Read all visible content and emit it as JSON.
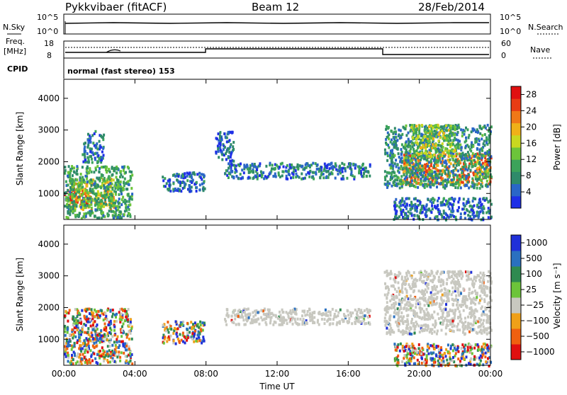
{
  "header": {
    "radar": "Pykkvibaer (fitACF)",
    "beam": "Beam 12",
    "date": "28/Feb/2014"
  },
  "strip": {
    "nsky_label": "N.Sky",
    "nsearch_label": "N.Search",
    "ns_ticks": [
      "10^5",
      "10^0"
    ],
    "freq_label": "Freq.",
    "freq_unit": "[MHz]",
    "freq_ticks": [
      "18",
      "8"
    ],
    "nave_label": "Nave",
    "nave_ticks": [
      "60",
      "0"
    ],
    "cpid_label": "CPID",
    "cpid_text": "normal (fast stereo) 153"
  },
  "chart_data": [
    {
      "type": "heatmap",
      "name": "power",
      "ylabel": "Slant Range [km]",
      "xlabel": "",
      "yticks": [
        1000,
        2000,
        3000,
        4000
      ],
      "ylim": [
        180,
        4600
      ],
      "xlim": [
        0,
        24
      ],
      "colorbar": {
        "label": "Power [dB]",
        "ticks": [
          4,
          8,
          12,
          16,
          20,
          24,
          28
        ],
        "range": [
          0,
          30
        ],
        "colors": [
          "#1e2fe6",
          "#2a66c8",
          "#2f8a6a",
          "#3ca35a",
          "#6cc43a",
          "#c8d820",
          "#f0b018",
          "#f07818",
          "#e83c14",
          "#e01010"
        ]
      },
      "patches": [
        {
          "t0": 0.0,
          "t1": 1.5,
          "r0": 600,
          "r1": 1200,
          "level": 27
        },
        {
          "t0": 0.3,
          "t1": 2.8,
          "r0": 500,
          "r1": 1500,
          "level": 18
        },
        {
          "t0": 0.0,
          "t1": 3.8,
          "r0": 250,
          "r1": 1900,
          "level": 10
        },
        {
          "t0": 1.0,
          "t1": 2.2,
          "r0": 2000,
          "r1": 3000,
          "level": 6
        },
        {
          "t0": 5.5,
          "t1": 7.9,
          "r0": 1100,
          "r1": 1700,
          "level": 5
        },
        {
          "t0": 9.0,
          "t1": 17.2,
          "r0": 1500,
          "r1": 2000,
          "level": 6
        },
        {
          "t0": 8.5,
          "t1": 9.5,
          "r0": 2000,
          "r1": 3000,
          "level": 4
        },
        {
          "t0": 19.0,
          "t1": 24.0,
          "r0": 1300,
          "r1": 2300,
          "level": 22
        },
        {
          "t0": 18.0,
          "t1": 24.0,
          "r0": 1200,
          "r1": 3200,
          "level": 8
        },
        {
          "t0": 19.5,
          "t1": 22.0,
          "r0": 2200,
          "r1": 3200,
          "level": 15
        },
        {
          "t0": 18.5,
          "t1": 24.0,
          "r0": 200,
          "r1": 900,
          "level": 5
        }
      ]
    },
    {
      "type": "heatmap",
      "name": "velocity",
      "ylabel": "Slant Range [km]",
      "xlabel": "Time UT",
      "xticks": [
        "00:00",
        "04:00",
        "08:00",
        "12:00",
        "16:00",
        "20:00",
        "00:00"
      ],
      "yticks": [
        1000,
        2000,
        3000,
        4000
      ],
      "ylim": [
        180,
        4600
      ],
      "xlim": [
        0,
        24
      ],
      "colorbar": {
        "label": "Velocity [m s⁻¹]",
        "ticks": [
          "1000",
          "500",
          "100",
          "25",
          "−25",
          "−100",
          "−500",
          "−1000"
        ],
        "colors": [
          "#2030d8",
          "#2a70c0",
          "#2f8a50",
          "#6cc43a",
          "#c8c8c0",
          "#f0a018",
          "#f06010",
          "#e01010"
        ]
      },
      "patches": [
        {
          "t0": 0.0,
          "t1": 3.8,
          "r0": 250,
          "r1": 2000,
          "level": "mixed"
        },
        {
          "t0": 5.5,
          "t1": 7.9,
          "r0": 900,
          "r1": 1600,
          "level": "mixed"
        },
        {
          "t0": 9.0,
          "t1": 17.2,
          "r0": 1500,
          "r1": 2000,
          "level": "ground"
        },
        {
          "t0": 18.0,
          "t1": 24.0,
          "r0": 1200,
          "r1": 3200,
          "level": "ground"
        },
        {
          "t0": 18.5,
          "t1": 24.0,
          "r0": 200,
          "r1": 900,
          "level": "mixed"
        }
      ]
    }
  ]
}
